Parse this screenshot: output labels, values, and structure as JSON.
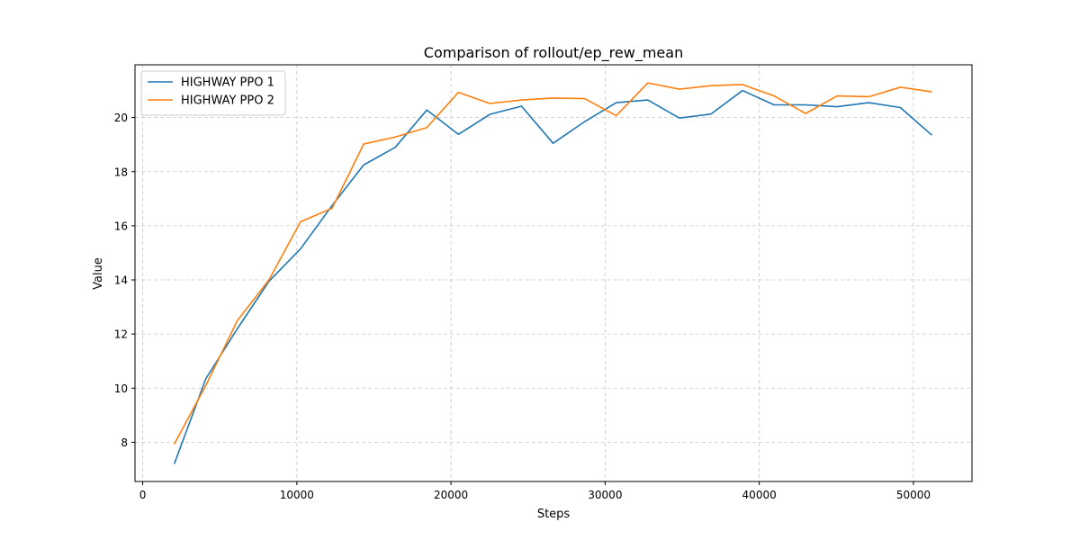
{
  "chart_data": {
    "type": "line",
    "title": "Comparison of rollout/ep_rew_mean",
    "xlabel": "Steps",
    "ylabel": "Value",
    "xlim": [
      -500,
      53800
    ],
    "ylim": [
      6.55,
      21.95
    ],
    "xticks": [
      0,
      10000,
      20000,
      30000,
      40000,
      50000
    ],
    "yticks": [
      8,
      10,
      12,
      14,
      16,
      18,
      20
    ],
    "grid": true,
    "legend_position": "upper left",
    "x": [
      2048,
      4096,
      6144,
      8192,
      10240,
      12288,
      14336,
      16384,
      18432,
      20480,
      22528,
      24576,
      26624,
      28672,
      30720,
      32768,
      34816,
      36864,
      38912,
      40960,
      43008,
      45056,
      47104,
      49152,
      51200
    ],
    "series": [
      {
        "name": "HIGHWAY PPO 1",
        "color": "#1f77b4",
        "values": [
          7.2,
          10.35,
          12.2,
          13.95,
          15.15,
          16.75,
          18.25,
          18.9,
          20.28,
          19.38,
          20.12,
          20.42,
          19.05,
          19.85,
          20.55,
          20.65,
          19.98,
          20.13,
          21.0,
          20.47,
          20.47,
          20.4,
          20.55,
          20.37,
          19.35
        ]
      },
      {
        "name": "HIGHWAY PPO 2",
        "color": "#ff7f0e",
        "values": [
          7.93,
          10.1,
          12.5,
          14.0,
          16.15,
          16.65,
          19.02,
          19.28,
          19.63,
          20.93,
          20.52,
          20.65,
          20.72,
          20.7,
          20.07,
          21.28,
          21.05,
          21.18,
          21.22,
          20.8,
          20.15,
          20.8,
          20.77,
          21.12,
          20.95
        ]
      }
    ]
  }
}
